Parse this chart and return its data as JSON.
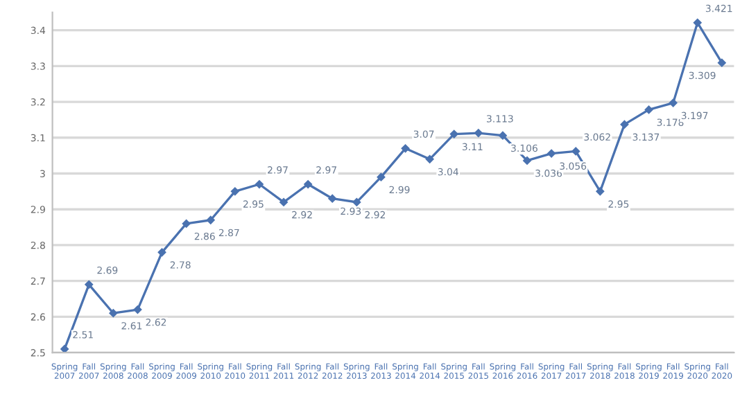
{
  "chart_data": {
    "type": "line",
    "categories": [
      "Spring\n2007",
      "Fall\n2007",
      "Spring\n2008",
      "Fall\n2008",
      "Spring\n2009",
      "Fall\n2009",
      "Spring\n2010",
      "Fall\n2010",
      "Spring\n2011",
      "Fall\n2011",
      "Spring\n2012",
      "Fall\n2012",
      "Spring\n2013",
      "Fall\n2013",
      "Spring\n2014",
      "Fall\n2014",
      "Spring\n2015",
      "Fall\n2015",
      "Spring\n2016",
      "Fall\n2016",
      "Spring\n2017",
      "Fall\n2017",
      "Spring\n2018",
      "Fall\n2018",
      "Spring\n2019",
      "Fall\n2019",
      "Spring\n2020",
      "Fall\n2020"
    ],
    "series": [
      {
        "color": "#4a72b0",
        "values": [
          2.51,
          2.69,
          2.61,
          2.62,
          2.78,
          2.86,
          2.87,
          2.95,
          2.97,
          2.92,
          2.97,
          2.93,
          2.92,
          2.99,
          3.07,
          3.04,
          3.11,
          3.113,
          3.106,
          3.036,
          3.056,
          3.062,
          2.95,
          3.137,
          3.178,
          3.197,
          3.421,
          3.309
        ]
      }
    ],
    "data_labels": true,
    "ylim": [
      2.5,
      3.45
    ],
    "yticks": [
      2.5,
      2.6,
      2.7,
      2.8,
      2.9,
      3,
      3.1,
      3.2,
      3.3,
      3.4
    ],
    "grid": "y",
    "legend": false,
    "marker": "diamond",
    "line_style": "solid"
  }
}
